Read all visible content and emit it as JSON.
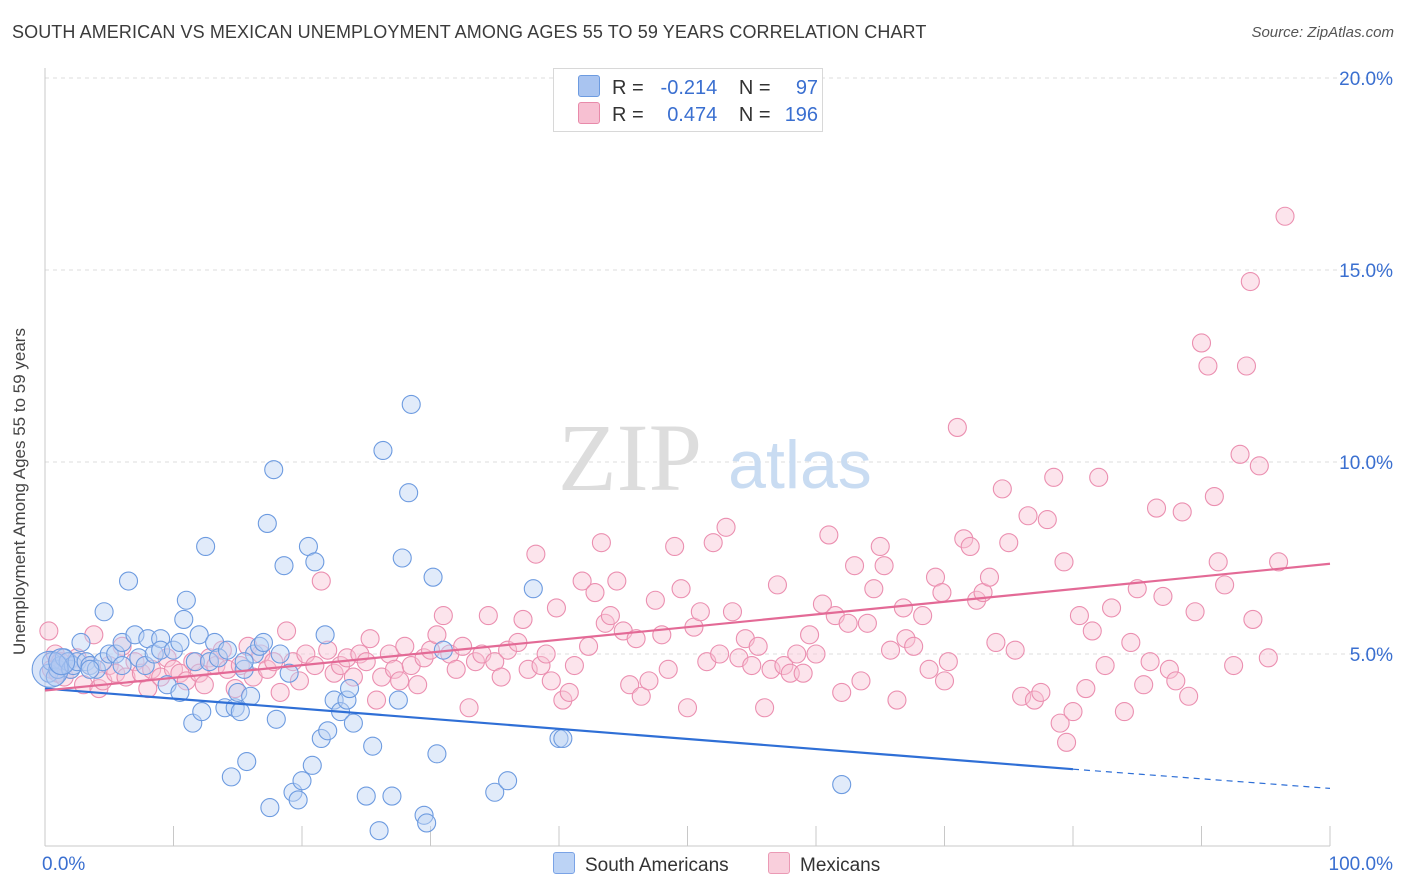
{
  "header": {
    "title": "SOUTH AMERICAN VS MEXICAN UNEMPLOYMENT AMONG AGES 55 TO 59 YEARS CORRELATION CHART",
    "source": "Source: ZipAtlas.com"
  },
  "watermark": {
    "zip": "ZIP",
    "atlas": "atlas"
  },
  "legend": {
    "rows": [
      {
        "r_label": "R =",
        "r_value": "-0.214",
        "n_label": "N =",
        "n_value": "97",
        "color": "#a9c4f0",
        "border": "#6d9be0"
      },
      {
        "r_label": "R =",
        "r_value": "0.474",
        "n_label": "N =",
        "n_value": "196",
        "color": "#f7c0d2",
        "border": "#e88aaa"
      }
    ],
    "bottom": [
      {
        "label": "South Americans",
        "color": "#bcd3f5",
        "border": "#7aa3e6"
      },
      {
        "label": "Mexicans",
        "color": "#f9cfdc",
        "border": "#eb9ab5"
      }
    ]
  },
  "chart_data": {
    "type": "scatter",
    "title": "SOUTH AMERICAN VS MEXICAN UNEMPLOYMENT AMONG AGES 55 TO 59 YEARS CORRELATION CHART",
    "xlabel": "",
    "ylabel": "Unemployment Among Ages 55 to 59 years",
    "xlim": [
      0,
      100
    ],
    "ylim": [
      0,
      20
    ],
    "x_tick_labels": [
      "0.0%",
      "100.0%"
    ],
    "y_ticks": [
      5,
      10,
      15,
      20
    ],
    "y_tick_labels": [
      "5.0%",
      "10.0%",
      "15.0%",
      "20.0%"
    ],
    "grid": true,
    "legend_position": "top-center",
    "series": [
      {
        "name": "South Americans",
        "color": "#6d9be0",
        "trend": {
          "x": [
            0,
            80
          ],
          "y": [
            4.1,
            2.0
          ],
          "dashed_to": [
            100,
            1.5
          ],
          "color": "#2f6fd6"
        },
        "points": [
          [
            0.3,
            4.5
          ],
          [
            0.5,
            4.8
          ],
          [
            0.8,
            4.4
          ],
          [
            1,
            4.6
          ],
          [
            1.2,
            4.7
          ],
          [
            1.5,
            4.9
          ],
          [
            1.8,
            4.8
          ],
          [
            2,
            4.6
          ],
          [
            2.2,
            4.7
          ],
          [
            2.5,
            4.8
          ],
          [
            2.8,
            5.3
          ],
          [
            3.2,
            4.8
          ],
          [
            3.5,
            4.7
          ],
          [
            4,
            4.6
          ],
          [
            4.5,
            4.8
          ],
          [
            4.6,
            6.1
          ],
          [
            5,
            5.0
          ],
          [
            5.5,
            5.0
          ],
          [
            6,
            5.3
          ],
          [
            6.5,
            6.9
          ],
          [
            7,
            5.5
          ],
          [
            7.3,
            4.9
          ],
          [
            7.8,
            4.7
          ],
          [
            8,
            5.4
          ],
          [
            8.5,
            5.0
          ],
          [
            9,
            5.4
          ],
          [
            9,
            5.1
          ],
          [
            9.5,
            4.2
          ],
          [
            10,
            5.1
          ],
          [
            10.5,
            5.3
          ],
          [
            10.5,
            4.0
          ],
          [
            10.8,
            5.9
          ],
          [
            11,
            6.4
          ],
          [
            11.5,
            3.2
          ],
          [
            11.7,
            4.8
          ],
          [
            12,
            5.5
          ],
          [
            12.2,
            3.5
          ],
          [
            12.5,
            7.8
          ],
          [
            12.8,
            4.8
          ],
          [
            13.2,
            5.3
          ],
          [
            13.5,
            4.9
          ],
          [
            14,
            3.6
          ],
          [
            14.2,
            5.1
          ],
          [
            14.5,
            1.8
          ],
          [
            14.8,
            3.6
          ],
          [
            15,
            4.0
          ],
          [
            15.2,
            3.5
          ],
          [
            15.5,
            4.6
          ],
          [
            15.7,
            2.2
          ],
          [
            16,
            3.9
          ],
          [
            16.3,
            5.0
          ],
          [
            16.7,
            5.2
          ],
          [
            17,
            5.3
          ],
          [
            17.3,
            8.4
          ],
          [
            17.5,
            1.0
          ],
          [
            17.8,
            9.8
          ],
          [
            18,
            3.3
          ],
          [
            18.3,
            5.0
          ],
          [
            18.6,
            7.3
          ],
          [
            19,
            4.5
          ],
          [
            19.3,
            1.4
          ],
          [
            19.7,
            1.2
          ],
          [
            20,
            1.7
          ],
          [
            20.5,
            7.8
          ],
          [
            20.8,
            2.1
          ],
          [
            21,
            7.4
          ],
          [
            21.5,
            2.8
          ],
          [
            21.8,
            5.5
          ],
          [
            22,
            3.0
          ],
          [
            22.5,
            3.8
          ],
          [
            23,
            3.5
          ],
          [
            23.5,
            3.8
          ],
          [
            23.7,
            4.1
          ],
          [
            24,
            3.2
          ],
          [
            25,
            1.3
          ],
          [
            25.5,
            2.6
          ],
          [
            26,
            0.4
          ],
          [
            26.3,
            10.3
          ],
          [
            27,
            1.3
          ],
          [
            27.5,
            3.8
          ],
          [
            27.8,
            7.5
          ],
          [
            28.3,
            9.2
          ],
          [
            28.5,
            11.5
          ],
          [
            29.5,
            0.8
          ],
          [
            29.7,
            0.6
          ],
          [
            30.2,
            7.0
          ],
          [
            30.5,
            2.4
          ],
          [
            31,
            5.1
          ],
          [
            35,
            1.4
          ],
          [
            36,
            1.7
          ],
          [
            38,
            6.7
          ],
          [
            40,
            2.8
          ],
          [
            40.3,
            2.8
          ],
          [
            62,
            1.6
          ],
          [
            15.5,
            4.8
          ],
          [
            6,
            4.7
          ],
          [
            3.5,
            4.6
          ]
        ]
      },
      {
        "name": "Mexicans",
        "color": "#eb8fb0",
        "trend": {
          "x": [
            0,
            100
          ],
          "y": [
            4.05,
            7.35
          ],
          "color": "#e36a96"
        },
        "points": [
          [
            0.3,
            5.6
          ],
          [
            0.5,
            4.6
          ],
          [
            0.8,
            5.0
          ],
          [
            1,
            4.5
          ],
          [
            1.2,
            4.8
          ],
          [
            1.5,
            4.4
          ],
          [
            2,
            4.6
          ],
          [
            2.5,
            4.9
          ],
          [
            3,
            4.2
          ],
          [
            3.5,
            4.7
          ],
          [
            3.8,
            5.5
          ],
          [
            4.2,
            4.1
          ],
          [
            4.5,
            4.3
          ],
          [
            5,
            4.7
          ],
          [
            5.5,
            4.5
          ],
          [
            6,
            5.2
          ],
          [
            6.3,
            4.4
          ],
          [
            7,
            4.8
          ],
          [
            7.5,
            4.5
          ],
          [
            8,
            4.1
          ],
          [
            8.3,
            4.6
          ],
          [
            9,
            4.4
          ],
          [
            9.5,
            4.9
          ],
          [
            10,
            4.6
          ],
          [
            10.5,
            4.5
          ],
          [
            11,
            4.3
          ],
          [
            11.5,
            4.8
          ],
          [
            12,
            4.5
          ],
          [
            12.4,
            4.2
          ],
          [
            12.8,
            4.9
          ],
          [
            13.3,
            4.7
          ],
          [
            13.8,
            5.1
          ],
          [
            14.2,
            4.6
          ],
          [
            14.8,
            4.1
          ],
          [
            15.2,
            4.7
          ],
          [
            15.8,
            5.2
          ],
          [
            16.2,
            4.4
          ],
          [
            16.8,
            5.0
          ],
          [
            17.3,
            4.6
          ],
          [
            17.8,
            4.8
          ],
          [
            18.3,
            4.0
          ],
          [
            18.8,
            5.6
          ],
          [
            19.3,
            4.8
          ],
          [
            19.8,
            4.3
          ],
          [
            20.3,
            5.0
          ],
          [
            21,
            4.7
          ],
          [
            21.5,
            6.9
          ],
          [
            22,
            5.1
          ],
          [
            22.5,
            4.5
          ],
          [
            23,
            4.7
          ],
          [
            23.5,
            4.9
          ],
          [
            24,
            4.4
          ],
          [
            24.5,
            5.0
          ],
          [
            25,
            4.8
          ],
          [
            25.3,
            5.4
          ],
          [
            25.8,
            3.8
          ],
          [
            26.2,
            4.4
          ],
          [
            26.8,
            5.0
          ],
          [
            27.2,
            4.6
          ],
          [
            27.6,
            4.3
          ],
          [
            28,
            5.2
          ],
          [
            28.5,
            4.7
          ],
          [
            29,
            4.2
          ],
          [
            29.5,
            4.9
          ],
          [
            30,
            5.1
          ],
          [
            30.5,
            5.5
          ],
          [
            31,
            6.0
          ],
          [
            31.5,
            5.0
          ],
          [
            32,
            4.6
          ],
          [
            32.5,
            5.2
          ],
          [
            33,
            3.6
          ],
          [
            33.5,
            4.8
          ],
          [
            34,
            5.0
          ],
          [
            34.5,
            6.0
          ],
          [
            35,
            4.8
          ],
          [
            35.5,
            4.4
          ],
          [
            36,
            5.1
          ],
          [
            36.8,
            5.3
          ],
          [
            37.2,
            5.9
          ],
          [
            37.6,
            4.6
          ],
          [
            38.2,
            7.6
          ],
          [
            38.6,
            4.7
          ],
          [
            39,
            5.0
          ],
          [
            39.4,
            4.3
          ],
          [
            39.8,
            6.2
          ],
          [
            40.3,
            3.8
          ],
          [
            40.8,
            4.0
          ],
          [
            41.2,
            4.7
          ],
          [
            41.8,
            6.9
          ],
          [
            42.3,
            5.2
          ],
          [
            42.8,
            6.6
          ],
          [
            43.3,
            7.9
          ],
          [
            43.6,
            5.8
          ],
          [
            44,
            6.0
          ],
          [
            44.5,
            6.9
          ],
          [
            45,
            5.6
          ],
          [
            45.5,
            4.2
          ],
          [
            46,
            5.4
          ],
          [
            46.4,
            3.9
          ],
          [
            47,
            4.3
          ],
          [
            47.5,
            6.4
          ],
          [
            48,
            5.5
          ],
          [
            48.5,
            4.6
          ],
          [
            49,
            7.8
          ],
          [
            49.5,
            6.7
          ],
          [
            50,
            3.6
          ],
          [
            50.5,
            5.7
          ],
          [
            51,
            6.1
          ],
          [
            51.5,
            4.8
          ],
          [
            52,
            7.9
          ],
          [
            52.5,
            5.0
          ],
          [
            53,
            8.3
          ],
          [
            53.5,
            6.1
          ],
          [
            54,
            4.9
          ],
          [
            54.5,
            5.4
          ],
          [
            55,
            4.7
          ],
          [
            55.5,
            5.2
          ],
          [
            56,
            3.6
          ],
          [
            56.5,
            4.6
          ],
          [
            57,
            6.8
          ],
          [
            57.5,
            4.7
          ],
          [
            58,
            4.5
          ],
          [
            58.5,
            5.0
          ],
          [
            59,
            4.5
          ],
          [
            59.5,
            5.5
          ],
          [
            60,
            5.0
          ],
          [
            60.5,
            6.3
          ],
          [
            61,
            8.1
          ],
          [
            61.5,
            6.0
          ],
          [
            62,
            4.0
          ],
          [
            62.5,
            5.8
          ],
          [
            63,
            7.3
          ],
          [
            63.5,
            4.3
          ],
          [
            64,
            5.8
          ],
          [
            64.5,
            6.7
          ],
          [
            65,
            7.8
          ],
          [
            65.3,
            7.3
          ],
          [
            65.8,
            5.1
          ],
          [
            66.3,
            3.8
          ],
          [
            66.8,
            6.2
          ],
          [
            67,
            5.4
          ],
          [
            67.6,
            5.2
          ],
          [
            68.3,
            6.0
          ],
          [
            68.8,
            4.6
          ],
          [
            69.3,
            7.0
          ],
          [
            69.8,
            6.6
          ],
          [
            70,
            4.3
          ],
          [
            70.3,
            4.8
          ],
          [
            71,
            10.9
          ],
          [
            71.5,
            8.0
          ],
          [
            72,
            7.8
          ],
          [
            72.5,
            6.4
          ],
          [
            73,
            6.6
          ],
          [
            73.5,
            7.0
          ],
          [
            74,
            5.3
          ],
          [
            74.5,
            9.3
          ],
          [
            75,
            7.9
          ],
          [
            75.5,
            5.1
          ],
          [
            76,
            3.9
          ],
          [
            76.5,
            8.6
          ],
          [
            77,
            3.8
          ],
          [
            77.5,
            4.0
          ],
          [
            78,
            8.5
          ],
          [
            78.5,
            9.6
          ],
          [
            79,
            3.2
          ],
          [
            79.3,
            7.4
          ],
          [
            79.5,
            2.7
          ],
          [
            80,
            3.5
          ],
          [
            80.5,
            6.0
          ],
          [
            81,
            4.1
          ],
          [
            81.5,
            5.6
          ],
          [
            82,
            9.6
          ],
          [
            82.5,
            4.7
          ],
          [
            83,
            6.2
          ],
          [
            84,
            3.5
          ],
          [
            84.5,
            5.3
          ],
          [
            85,
            6.7
          ],
          [
            85.5,
            4.2
          ],
          [
            86,
            4.8
          ],
          [
            86.5,
            8.8
          ],
          [
            87,
            6.5
          ],
          [
            87.5,
            4.6
          ],
          [
            88,
            4.3
          ],
          [
            88.5,
            8.7
          ],
          [
            89,
            3.9
          ],
          [
            89.5,
            6.1
          ],
          [
            90,
            13.1
          ],
          [
            90.5,
            12.5
          ],
          [
            91,
            9.1
          ],
          [
            91.3,
            7.4
          ],
          [
            91.8,
            6.8
          ],
          [
            92.5,
            4.7
          ],
          [
            93,
            10.2
          ],
          [
            93.5,
            12.5
          ],
          [
            93.8,
            14.7
          ],
          [
            94.5,
            9.9
          ],
          [
            95.2,
            4.9
          ],
          [
            96,
            7.4
          ],
          [
            96.5,
            16.4
          ],
          [
            94,
            5.9
          ]
        ]
      }
    ]
  }
}
